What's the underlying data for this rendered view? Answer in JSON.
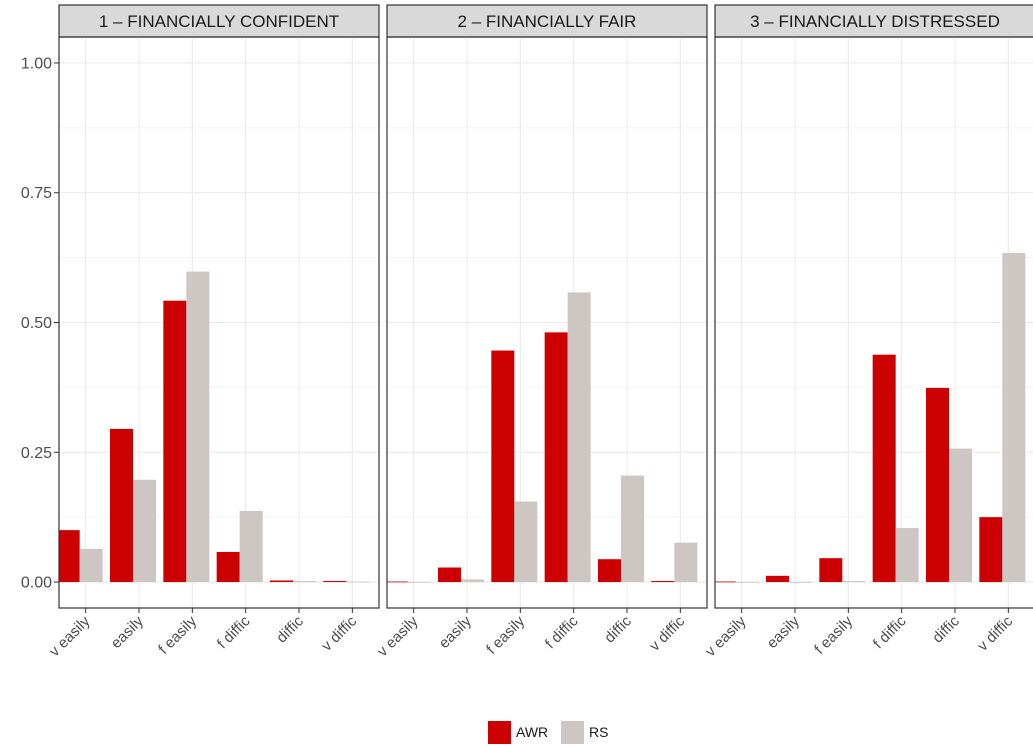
{
  "chart_data": {
    "type": "bar",
    "ylim": [
      -0.05,
      1.05
    ],
    "yticks": [
      "0.00",
      "0.25",
      "0.50",
      "0.75",
      "1.00"
    ],
    "ytick_values": [
      0,
      0.25,
      0.5,
      0.75,
      1.0
    ],
    "categories": [
      "v easily",
      "easily",
      "f easily",
      "f diffic",
      "diffic",
      "v diffic"
    ],
    "legend": {
      "position": "bottom",
      "entries": [
        {
          "name": "AWR",
          "color": "#cc0000"
        },
        {
          "name": "RS",
          "color": "#cdc6c2"
        }
      ]
    },
    "grid": true,
    "panels": [
      {
        "title": "1 – FINANCIALLY CONFIDENT",
        "series": [
          {
            "name": "AWR",
            "values": [
              0.1,
              0.295,
              0.542,
              0.058,
              0.003,
              0.002
            ]
          },
          {
            "name": "RS",
            "values": [
              0.064,
              0.197,
              0.598,
              0.137,
              0.002,
              0.001
            ]
          }
        ]
      },
      {
        "title": "2 – FINANCIALLY FAIR",
        "series": [
          {
            "name": "AWR",
            "values": [
              0.001,
              0.028,
              0.446,
              0.481,
              0.044,
              0.002
            ]
          },
          {
            "name": "RS",
            "values": [
              0.0,
              0.005,
              0.155,
              0.558,
              0.205,
              0.076
            ]
          }
        ]
      },
      {
        "title": "3 – FINANCIALLY DISTRESSED",
        "series": [
          {
            "name": "AWR",
            "values": [
              0.001,
              0.012,
              0.046,
              0.438,
              0.374,
              0.125
            ]
          },
          {
            "name": "RS",
            "values": [
              0.0,
              0.0,
              0.002,
              0.104,
              0.257,
              0.634
            ]
          }
        ]
      }
    ]
  }
}
